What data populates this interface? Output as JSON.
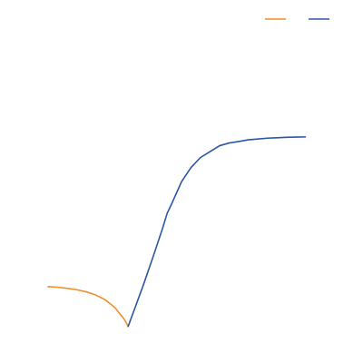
{
  "chart_data": {
    "type": "line",
    "title": "",
    "xlabel": "",
    "ylabel": "",
    "axes_visible": false,
    "grid": false,
    "legend": {
      "placement": "top-right",
      "entries": [
        {
          "color": "#f28e2b",
          "label": ""
        },
        {
          "color": "#2a56a6",
          "label": ""
        }
      ]
    },
    "xlim": [
      0,
      28
    ],
    "ylim": [
      0,
      100
    ],
    "series": [
      {
        "color": "#f28e2b",
        "points": [
          [
            0,
            20.0
          ],
          [
            1,
            19.7
          ],
          [
            2,
            19.2
          ],
          [
            3,
            18.5
          ],
          [
            4,
            17.5
          ],
          [
            5,
            16.0
          ],
          [
            6,
            13.7
          ],
          [
            7,
            10.0
          ],
          [
            8,
            4.4
          ],
          [
            8.4,
            1.0
          ]
        ]
      },
      {
        "color": "#2a56a6",
        "points": [
          [
            8.4,
            1.0
          ],
          [
            9,
            8.4
          ],
          [
            10,
            20.8
          ],
          [
            11,
            34.0
          ],
          [
            12,
            47.6
          ],
          [
            12.5,
            55.0
          ],
          [
            13,
            59.8
          ],
          [
            14,
            70.0
          ],
          [
            15,
            76.8
          ],
          [
            16,
            81.6
          ],
          [
            17,
            84.4
          ],
          [
            18,
            87.2
          ],
          [
            19,
            88.5
          ],
          [
            20,
            89.2
          ],
          [
            21,
            90.0
          ],
          [
            22,
            90.4
          ],
          [
            23,
            90.8
          ],
          [
            24,
            91.0
          ],
          [
            25,
            91.2
          ],
          [
            26,
            91.3
          ],
          [
            27,
            91.4
          ]
        ]
      }
    ]
  }
}
